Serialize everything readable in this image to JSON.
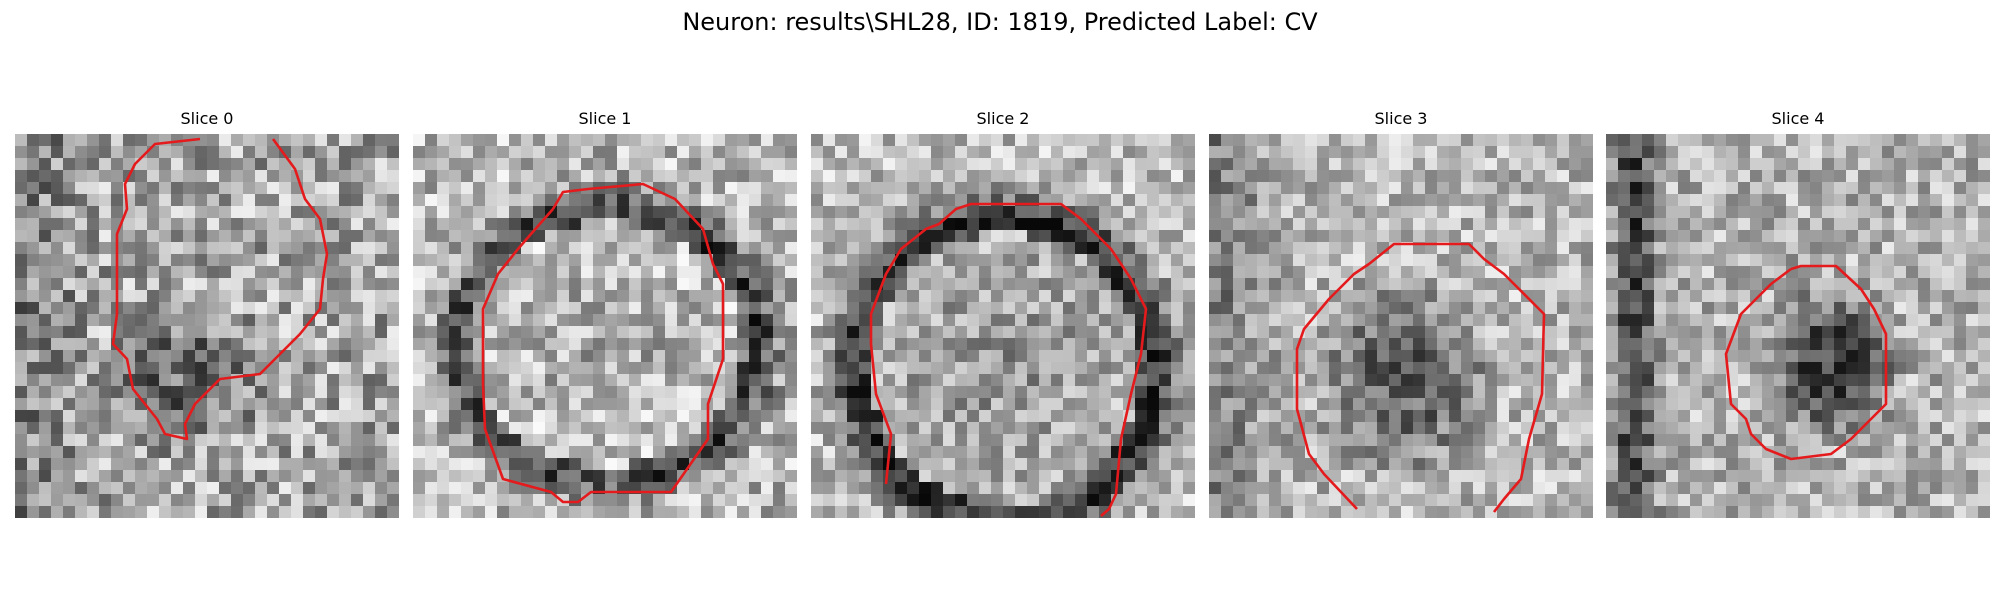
{
  "figure": {
    "title": "Neuron: results\\SHL28, ID: 1819, Predicted Label: CV"
  },
  "panels": [
    {
      "title": "Slice 0"
    },
    {
      "title": "Slice 1"
    },
    {
      "title": "Slice 2"
    },
    {
      "title": "Slice 3"
    },
    {
      "title": "Slice 4"
    }
  ],
  "colors": {
    "contour": "#e41a1c",
    "background": "#ffffff"
  }
}
